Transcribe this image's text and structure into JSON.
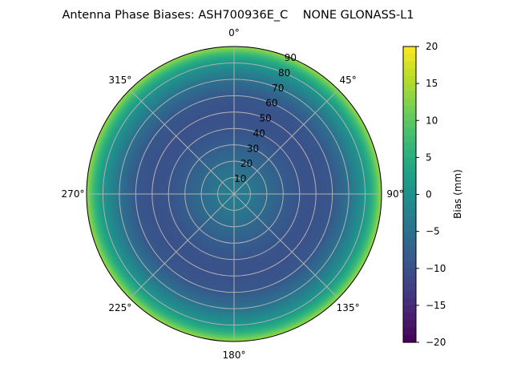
{
  "chart_data": {
    "type": "heatmap",
    "projection": "polar",
    "title": "Antenna Phase Biases: ASH700936E_C    NONE GLONASS-L1",
    "angular_ticks": [
      "0°",
      "45°",
      "90°",
      "135°",
      "180°",
      "225°",
      "270°",
      "315°"
    ],
    "radial_ticks": [
      "10",
      "20",
      "30",
      "40",
      "50",
      "60",
      "70",
      "80",
      "90"
    ],
    "radial_range": [
      0,
      90
    ],
    "grid": true,
    "colormap": "viridis",
    "colorbar": {
      "label": "Bias (mm)",
      "range": [
        -20,
        20
      ],
      "ticks": [
        "20",
        "15",
        "10",
        "5",
        "0",
        "−5",
        "−10",
        "−15",
        "−20"
      ]
    },
    "radial_profile": {
      "zenith_deg": [
        0,
        10,
        20,
        30,
        40,
        50,
        60,
        70,
        80,
        85,
        90
      ],
      "bias_mm": [
        -3,
        -4,
        -6,
        -8,
        -9.5,
        -10,
        -9,
        -5,
        1,
        6,
        14
      ]
    }
  }
}
